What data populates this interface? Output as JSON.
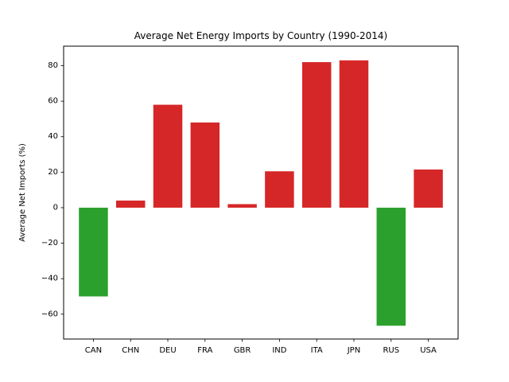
{
  "chart_data": {
    "type": "bar",
    "title": "Average Net Energy Imports by Country (1990-2014)",
    "xlabel": "",
    "ylabel": "Average Net Imports (%)",
    "categories": [
      "CAN",
      "CHN",
      "DEU",
      "FRA",
      "GBR",
      "IND",
      "ITA",
      "JPN",
      "RUS",
      "USA"
    ],
    "values": [
      -50,
      4,
      58,
      48,
      2,
      20.5,
      82,
      83,
      -66.5,
      21.5
    ],
    "ylim": [
      -74,
      91
    ],
    "yticks": [
      80,
      60,
      40,
      20,
      0,
      -20,
      -40,
      -60
    ],
    "ytick_labels": [
      "80",
      "60",
      "40",
      "20",
      "0",
      "−20",
      "−40",
      "−60"
    ],
    "colors": {
      "positive": "#d62728",
      "negative": "#2ca02c"
    },
    "grid": false,
    "legend": "none"
  }
}
